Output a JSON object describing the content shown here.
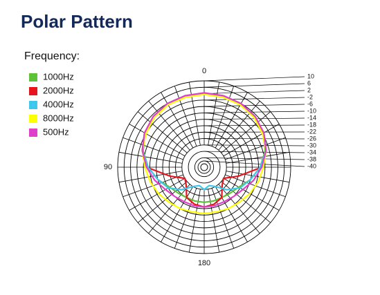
{
  "title": "Polar Pattern",
  "chart_data": {
    "type": "polar",
    "legend_title": "Frequency:",
    "theta": [
      0,
      15,
      30,
      45,
      60,
      75,
      90,
      105,
      120,
      135,
      150,
      165,
      180,
      195,
      210,
      225,
      240,
      255,
      270,
      285,
      300,
      315,
      330,
      345
    ],
    "thetaticks": [
      0,
      90,
      180
    ],
    "rlim": [
      -40,
      10
    ],
    "rticks": [
      10,
      6,
      2,
      -2,
      -6,
      -10,
      -14,
      -18,
      -22,
      -26,
      -30,
      -34,
      -38,
      -40
    ],
    "series": [
      {
        "name": "1000Hz",
        "color": "#5fc13a",
        "values": [
          2,
          1.8,
          1.5,
          0.5,
          -1.5,
          -4.5,
          -9,
          -14,
          -19,
          -21,
          -22,
          -22,
          -22,
          -22,
          -22,
          -21,
          -19,
          -14,
          -9,
          -4.5,
          -1.5,
          0.5,
          1.5,
          1.8
        ]
      },
      {
        "name": "2000Hz",
        "color": "#e8141b",
        "values": [
          2,
          1.8,
          1.5,
          0.5,
          -1,
          -4,
          -8,
          -22,
          -30,
          -28,
          -22,
          -20,
          -19,
          -20,
          -22,
          -28,
          -30,
          -22,
          -8,
          -4,
          -1,
          0.5,
          1.5,
          1.8
        ]
      },
      {
        "name": "4000Hz",
        "color": "#3fc8ee",
        "values": [
          2,
          1.8,
          1.5,
          0.5,
          -1,
          -4,
          -9,
          -14,
          -18,
          -24,
          -30,
          -32,
          -30,
          -32,
          -30,
          -24,
          -18,
          -14,
          -9,
          -4,
          -1,
          0.5,
          1.5,
          1.8
        ]
      },
      {
        "name": "8000Hz",
        "color": "#ffff00",
        "values": [
          1.5,
          1.3,
          1,
          0,
          -2,
          -4,
          -7,
          -9,
          -11,
          -13,
          -14,
          -15,
          -15,
          -15,
          -14,
          -13,
          -11,
          -9,
          -7,
          -4,
          -2,
          0,
          1,
          1.3
        ]
      },
      {
        "name": "500Hz",
        "color": "#e040c8",
        "values": [
          2.5,
          2.3,
          2,
          1,
          -1,
          -4,
          -8,
          -12,
          -16,
          -18,
          -19,
          -19,
          -19,
          -19,
          -19,
          -18,
          -16,
          -12,
          -8,
          -4,
          -1,
          1,
          2,
          2.3
        ]
      }
    ]
  }
}
